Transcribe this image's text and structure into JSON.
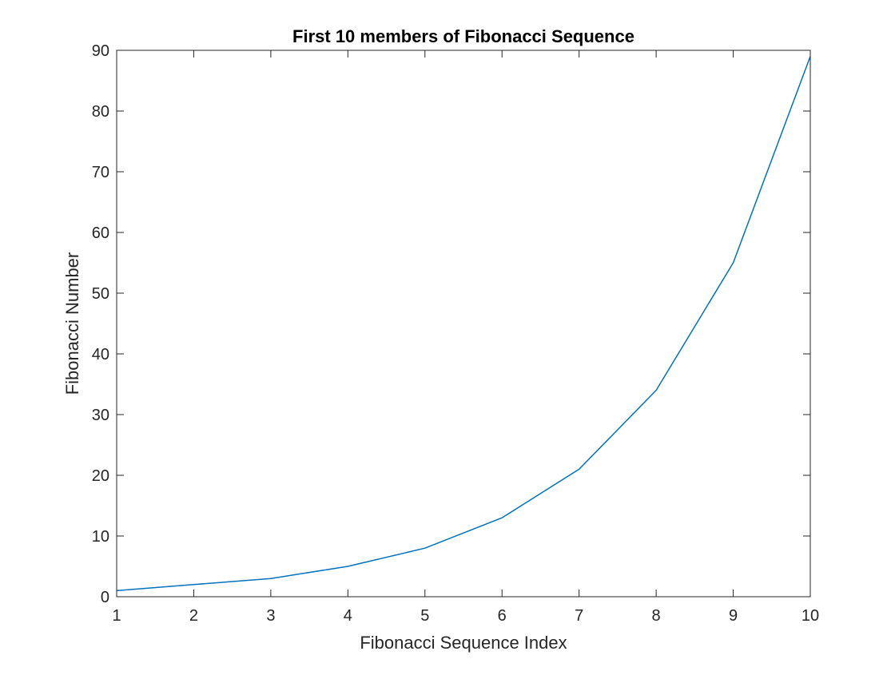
{
  "chart_data": {
    "type": "line",
    "title": "First 10 members of Fibonacci Sequence",
    "xlabel": "Fibonacci Sequence Index",
    "ylabel": "Fibonacci Number",
    "x": [
      1,
      2,
      3,
      4,
      5,
      6,
      7,
      8,
      9,
      10
    ],
    "series": [
      {
        "values": [
          1,
          2,
          3,
          5,
          8,
          13,
          21,
          34,
          55,
          89
        ]
      }
    ],
    "xlim": [
      1,
      10
    ],
    "ylim": [
      0,
      90
    ],
    "xticks": [
      "1",
      "2",
      "3",
      "4",
      "5",
      "6",
      "7",
      "8",
      "9",
      "10"
    ],
    "yticks": [
      "0",
      "10",
      "20",
      "30",
      "40",
      "50",
      "60",
      "70",
      "80",
      "90"
    ],
    "grid": false,
    "legend": "none",
    "colors": {
      "line": "#0072BD",
      "axes": "#262626",
      "background": "#ffffff"
    }
  }
}
